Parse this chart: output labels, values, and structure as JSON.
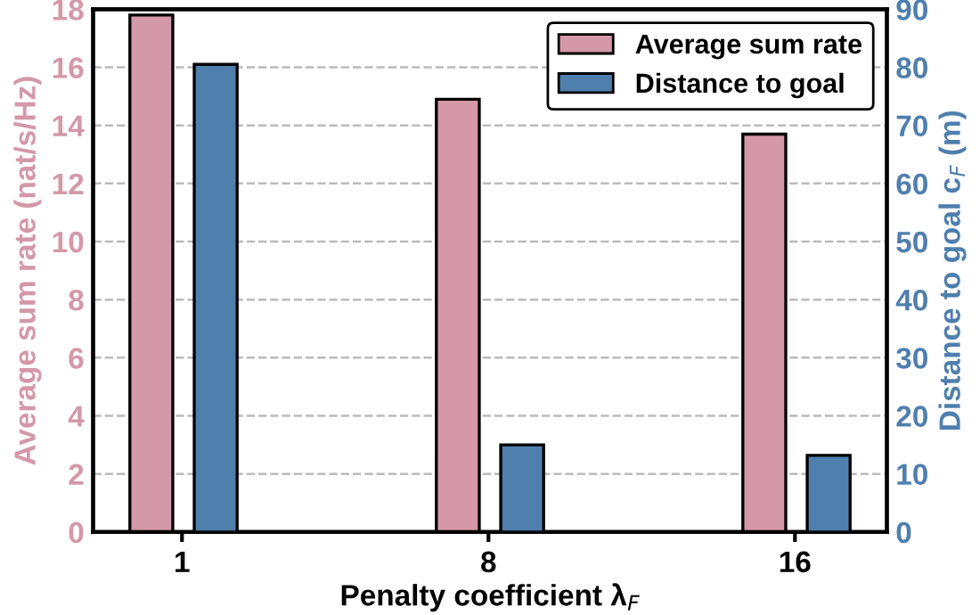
{
  "chart_data": {
    "type": "bar",
    "xlabel": "Penalty coefficient λ$_{F}$",
    "ylabel": "Average sum rate (nat/s/Hz)",
    "y2label": "Distance to goal c$_{F}$ (m)",
    "categories": [
      "1",
      "8",
      "16"
    ],
    "series": [
      {
        "name": "Average sum rate",
        "color": "#d498a8",
        "values": [
          17.8,
          14.9,
          13.7
        ]
      },
      {
        "name": "Distance to goal",
        "color": "#4f7fad",
        "values": [
          80.5,
          15,
          13.2
        ],
        "axis": "y2"
      }
    ],
    "ylim": [
      0,
      18
    ],
    "yticks": [
      0,
      2,
      4,
      6,
      8,
      10,
      12,
      14,
      16,
      18
    ],
    "y2lim": [
      0,
      90
    ],
    "y2ticks": [
      0,
      10,
      20,
      30,
      40,
      50,
      60,
      70,
      80,
      90
    ],
    "grid": "y",
    "legend": "top right"
  }
}
